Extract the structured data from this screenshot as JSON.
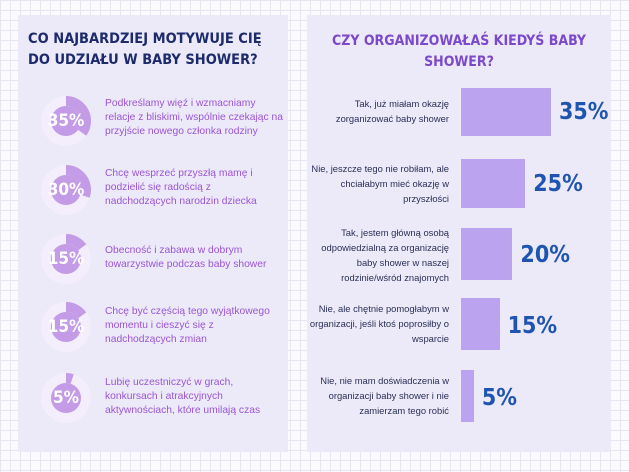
{
  "left_panel": {
    "title": "CO NAJBARDZIEJ MOTYWUJE CIĘ DO UDZIAŁU W BABY SHOWER?",
    "items": [
      {
        "percent": 35,
        "label": "35%",
        "text": "Podkreślamy więź i wzmacniamy relacje z bliskimi, wspólnie czekając na przyjście nowego członka rodziny"
      },
      {
        "percent": 30,
        "label": "30%",
        "text": "Chcę wesprzeć przyszłą mamę i podzielić się radością z nadchodzących narodzin dziecka"
      },
      {
        "percent": 15,
        "label": "15%",
        "text": "Obecność i zabawa w dobrym towarzystwie podczas baby shower"
      },
      {
        "percent": 15,
        "label": "15%",
        "text": "Chcę być częścią tego wyjątkowego momentu i cieszyć się z nadchodzących zmian"
      },
      {
        "percent": 5,
        "label": "5%",
        "text": "Lubię uczestniczyć w grach, konkursach i atrakcyjnych aktywnościach, które umilają czas"
      }
    ]
  },
  "right_panel": {
    "title": "CZY ORGANIZOWAŁAŚ KIEDYŚ BABY SHOWER?"
  },
  "colors": {
    "donut_fill": "#c39be6",
    "donut_track": "#f4eefc",
    "bar": "#bba3ef",
    "value_text": "#1f55b0",
    "left_title": "#1d2a6b",
    "right_title": "#7b49c9"
  },
  "chart_data": [
    {
      "type": "pie",
      "title": "CO NAJBARDZIEJ MOTYWUJE CIĘ DO UDZIAŁU W BABY SHOWER?",
      "categories": [
        "Podkreślamy więź i wzmacniamy relacje z bliskimi, wspólnie czekając na przyjście nowego członka rodziny",
        "Chcę wesprzeć przyszłą mamę i podzielić się radością z nadchodzących narodzin dziecka",
        "Obecność i zabawa w dobrym towarzystwie podczas baby shower",
        "Chcę być częścią tego wyjątkowego momentu i cieszyć się z nadchodzących zmian",
        "Lubię uczestniczyć w grach, konkursach i atrakcyjnych aktywnościach, które umilają czas"
      ],
      "values": [
        35,
        30,
        15,
        15,
        5
      ]
    },
    {
      "type": "bar",
      "orientation": "horizontal",
      "title": "CZY ORGANIZOWAŁAŚ KIEDYŚ BABY SHOWER?",
      "categories": [
        "Tak, już miałam okazję zorganizować baby shower",
        "Nie, jeszcze tego nie robiłam, ale chciałabym mieć okazję w przyszłości",
        "Tak, jestem główną osobą odpowiedzialną za organizację baby shower w naszej rodzinie/wśród znajomych",
        "Nie, ale chętnie pomogłabym w organizacji, jeśli ktoś poprosiłby o wsparcie",
        "Nie, nie mam doświadczenia w organizacji baby shower i nie zamierzam tego robić"
      ],
      "values": [
        35,
        25,
        20,
        15,
        5
      ],
      "value_labels": [
        "35%",
        "25%",
        "20%",
        "15%",
        "5%"
      ],
      "xlim": [
        0,
        35
      ],
      "grid": false
    }
  ]
}
